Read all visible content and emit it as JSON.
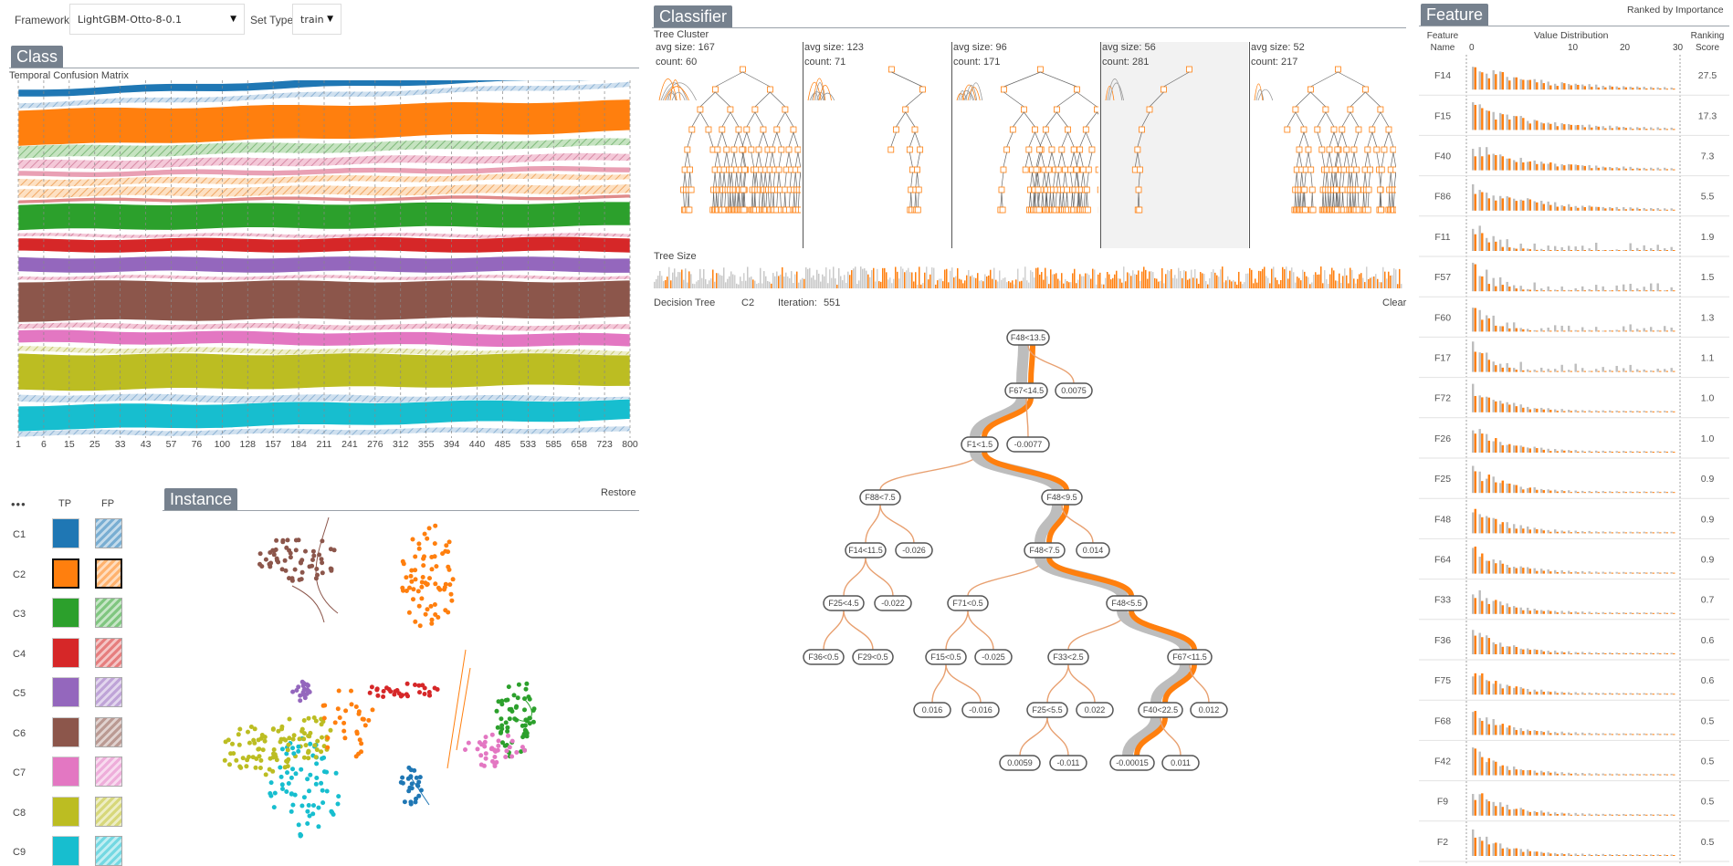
{
  "toolbar": {
    "framework_label": "Framework",
    "framework_value": "LightGBM-Otto-8-0.1",
    "settype_label": "Set Type",
    "settype_value": "train"
  },
  "class_panel": {
    "title": "Class",
    "subtitle": "Temporal Confusion Matrix",
    "iterations": [
      "1",
      "6",
      "15",
      "25",
      "33",
      "43",
      "57",
      "76",
      "100",
      "128",
      "157",
      "184",
      "211",
      "241",
      "276",
      "312",
      "355",
      "394",
      "440",
      "485",
      "533",
      "585",
      "658",
      "723",
      "800"
    ],
    "legend_header_more": "•••",
    "legend_header_tp": "TP",
    "legend_header_fp": "FP",
    "classes": [
      {
        "name": "C1",
        "color": "#1f77b4"
      },
      {
        "name": "C2",
        "color": "#ff7f0e"
      },
      {
        "name": "C3",
        "color": "#2ca02c"
      },
      {
        "name": "C4",
        "color": "#d62728"
      },
      {
        "name": "C5",
        "color": "#9467bd"
      },
      {
        "name": "C6",
        "color": "#8c564b"
      },
      {
        "name": "C7",
        "color": "#e377c2"
      },
      {
        "name": "C8",
        "color": "#bcbd22"
      },
      {
        "name": "C9",
        "color": "#17becf"
      }
    ]
  },
  "instance_panel": {
    "title": "Instance",
    "restore_label": "Restore"
  },
  "classifier_panel": {
    "title": "Classifier",
    "tree_cluster_label": "Tree Cluster",
    "clusters": [
      {
        "avg": "avg size: 167",
        "count": "count: 60"
      },
      {
        "avg": "avg size: 123",
        "count": "count: 71"
      },
      {
        "avg": "avg size: 96",
        "count": "count: 171"
      },
      {
        "avg": "avg size: 56",
        "count": "count: 281"
      },
      {
        "avg": "avg size: 52",
        "count": "count: 217"
      }
    ],
    "tree_size_label": "Tree Size",
    "decision_tree_label": "Decision Tree",
    "class_value": "C2",
    "iteration_label": "Iteration:",
    "iteration_value": "551",
    "clear_label": "Clear"
  },
  "decision_tree": {
    "nodes": [
      {
        "id": "n0",
        "label": "F48<13.5"
      },
      {
        "id": "n1",
        "label": "F67<14.5"
      },
      {
        "id": "n2",
        "label": "0.0075"
      },
      {
        "id": "n3",
        "label": "F1<1.5"
      },
      {
        "id": "n4",
        "label": "-0.0077"
      },
      {
        "id": "n5",
        "label": "F88<7.5"
      },
      {
        "id": "n6",
        "label": "F48<9.5"
      },
      {
        "id": "n7",
        "label": "F14<11.5"
      },
      {
        "id": "n8",
        "label": "-0.026"
      },
      {
        "id": "n9",
        "label": "F48<7.5"
      },
      {
        "id": "n10",
        "label": "0.014"
      },
      {
        "id": "n11",
        "label": "F25<4.5"
      },
      {
        "id": "n12",
        "label": "-0.022"
      },
      {
        "id": "n13",
        "label": "F71<0.5"
      },
      {
        "id": "n14",
        "label": "F48<5.5"
      },
      {
        "id": "n15",
        "label": "F36<0.5"
      },
      {
        "id": "n16",
        "label": "F29<0.5"
      },
      {
        "id": "n17",
        "label": "F15<0.5"
      },
      {
        "id": "n18",
        "label": "-0.025"
      },
      {
        "id": "n19",
        "label": "F33<2.5"
      },
      {
        "id": "n20",
        "label": "F67<11.5"
      },
      {
        "id": "n21",
        "label": "0.016"
      },
      {
        "id": "n22",
        "label": "-0.016"
      },
      {
        "id": "n23",
        "label": "F25<5.5"
      },
      {
        "id": "n24",
        "label": "0.022"
      },
      {
        "id": "n25",
        "label": "F40<22.5"
      },
      {
        "id": "n26",
        "label": "0.012"
      },
      {
        "id": "n27",
        "label": "0.0059"
      },
      {
        "id": "n28",
        "label": "-0.011"
      },
      {
        "id": "n29",
        "label": "-0.00015"
      },
      {
        "id": "n30",
        "label": "0.011"
      }
    ]
  },
  "feature_panel": {
    "title": "Feature",
    "ranked_label": "Ranked by Importance",
    "col_feature": "Feature Name",
    "col_feature_l1": "Feature",
    "col_feature_l2": "Name",
    "col_value": "Value Distribution",
    "col_score_l1": "Ranking",
    "col_score_l2": "Score",
    "axis_ticks": [
      "0",
      "10",
      "20",
      "30"
    ],
    "features": [
      {
        "name": "F14",
        "score": "27.5"
      },
      {
        "name": "F15",
        "score": "17.3"
      },
      {
        "name": "F40",
        "score": "7.3"
      },
      {
        "name": "F86",
        "score": "5.5"
      },
      {
        "name": "F11",
        "score": "1.9"
      },
      {
        "name": "F57",
        "score": "1.5"
      },
      {
        "name": "F60",
        "score": "1.3"
      },
      {
        "name": "F17",
        "score": "1.1"
      },
      {
        "name": "F72",
        "score": "1.0"
      },
      {
        "name": "F26",
        "score": "1.0"
      },
      {
        "name": "F25",
        "score": "0.9"
      },
      {
        "name": "F48",
        "score": "0.9"
      },
      {
        "name": "F64",
        "score": "0.9"
      },
      {
        "name": "F33",
        "score": "0.7"
      },
      {
        "name": "F36",
        "score": "0.6"
      },
      {
        "name": "F75",
        "score": "0.6"
      },
      {
        "name": "F68",
        "score": "0.5"
      },
      {
        "name": "F42",
        "score": "0.5"
      },
      {
        "name": "F9",
        "score": "0.5"
      },
      {
        "name": "F2",
        "score": "0.5"
      }
    ]
  }
}
